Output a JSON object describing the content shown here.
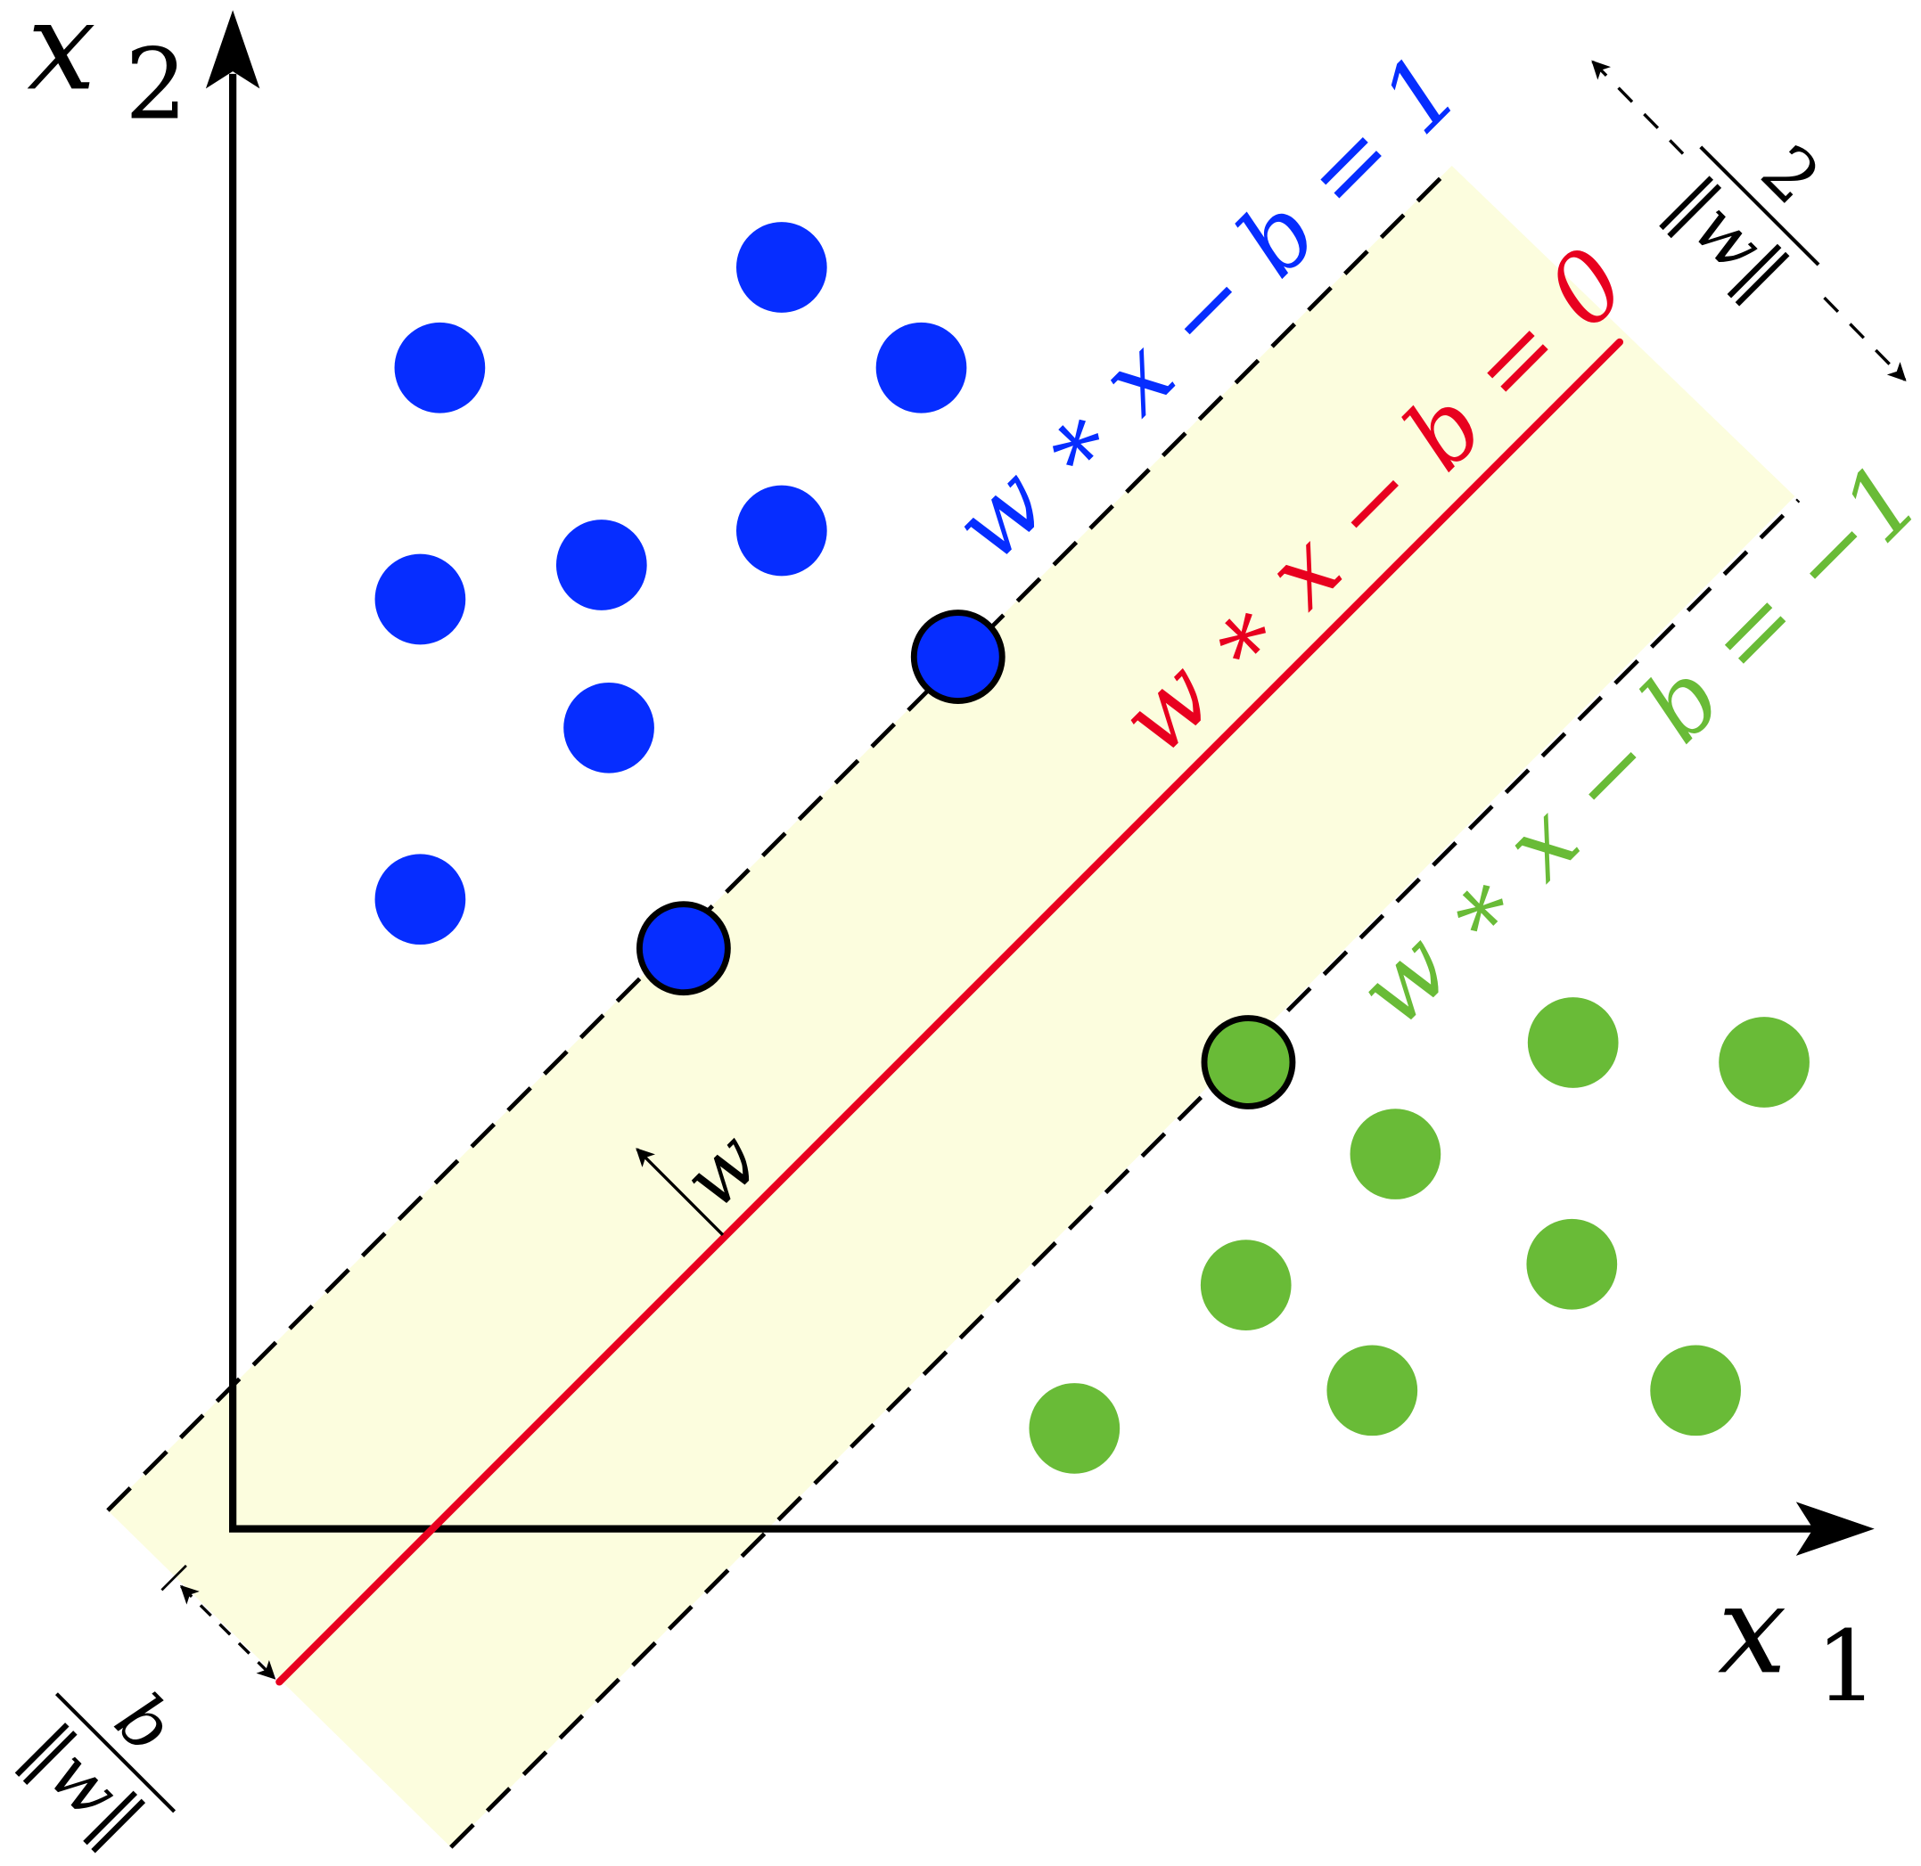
{
  "colors": {
    "positive_class": "#062DFF",
    "negative_class": "#69BB37",
    "hyperplane": "#E8001F",
    "margin_band": "#FCFDDE",
    "axes": "#000000"
  },
  "axes": {
    "x_label_var": "x",
    "x_label_sub": "1",
    "y_label_var": "x",
    "y_label_sub": "2"
  },
  "lines": {
    "positive_margin_label": "w ∗ x − b = 1",
    "hyperplane_label": "w ∗ x − b = 0",
    "negative_margin_label": "w ∗ x − b = −1"
  },
  "normal_vector_label": "w",
  "margin_width": {
    "numerator": "2",
    "denominator": "‖w‖"
  },
  "offset": {
    "numerator": "b",
    "denominator": "‖w‖"
  }
}
